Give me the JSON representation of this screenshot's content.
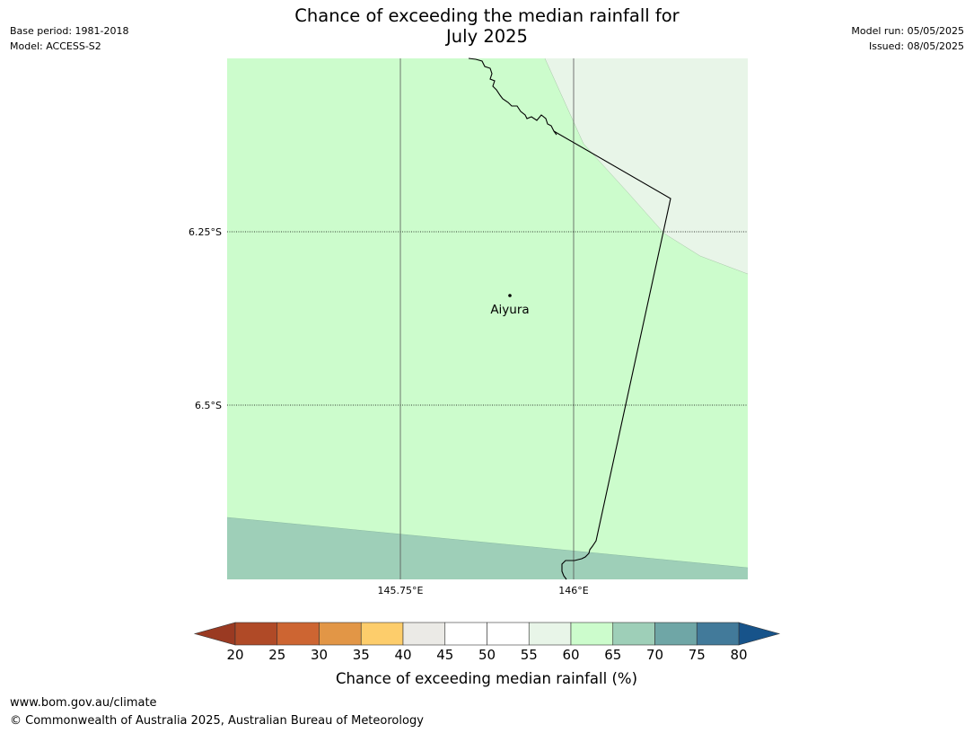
{
  "header": {
    "title_line1": "Chance of exceeding the median rainfall for",
    "title_line2": "July 2025",
    "base_period": "Base period: 1981-2018",
    "model": "Model: ACCESS-S2",
    "model_run": "Model run: 05/05/2025",
    "issued": "Issued: 08/05/2025"
  },
  "map": {
    "lat_labels": [
      "6.25°S",
      "6.5°S"
    ],
    "lon_labels": [
      "145.75°E",
      "146°E"
    ],
    "place": {
      "name": "Aiyura"
    },
    "colors": {
      "zone_55_60": "#e8f5e8",
      "zone_60_65": "#ccfccc",
      "zone_65_70": "#9ecfb8",
      "border": "#000000",
      "gridline": "#000000"
    }
  },
  "colorbar": {
    "title": "Chance of exceeding median rainfall (%)",
    "ticks": [
      "20",
      "25",
      "30",
      "35",
      "40",
      "45",
      "50",
      "55",
      "60",
      "65",
      "70",
      "75",
      "80"
    ],
    "under_color": "#9a3a22",
    "over_color": "#17538a",
    "colors": [
      "#b04a27",
      "#cd6532",
      "#e29646",
      "#fdcd6b",
      "#ebeae6",
      "#ffffff",
      "#ffffff",
      "#e8f5e8",
      "#ccfccc",
      "#9ecfb8",
      "#6fa6a6",
      "#427a9a"
    ]
  },
  "footer": {
    "url": "www.bom.gov.au/climate",
    "copyright": "© Commonwealth of Australia 2025, Australian Bureau of Meteorology"
  }
}
